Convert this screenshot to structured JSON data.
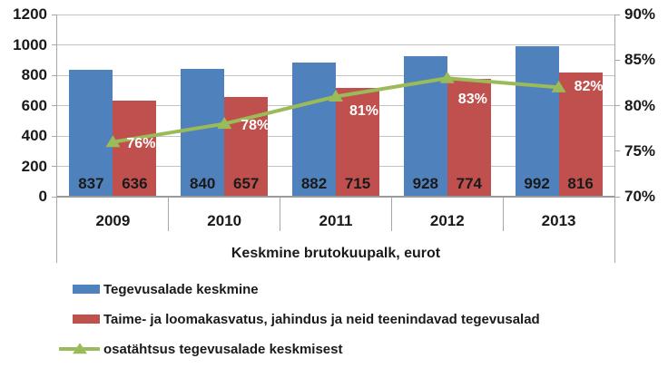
{
  "chart_data": {
    "type": "bar",
    "subtype": "grouped-bars-with-line-overlay",
    "title": "",
    "xlabel": "Keskmine brutokuupalk, eurot",
    "ylabel": "",
    "categories": [
      "2009",
      "2010",
      "2011",
      "2012",
      "2013"
    ],
    "series": [
      {
        "name": "Tegevusalade keskmine",
        "type": "bar",
        "axis": "left",
        "color": "#4F81BD",
        "values": [
          837,
          840,
          882,
          928,
          992
        ],
        "value_labels": [
          "837",
          "840",
          "882",
          "928",
          "992"
        ]
      },
      {
        "name": "Taime- ja loomakasvatus, jahindus ja neid teenindavad tegevusalad",
        "type": "bar",
        "axis": "left",
        "color": "#C0504D",
        "values": [
          636,
          657,
          715,
          774,
          816
        ],
        "value_labels": [
          "636",
          "657",
          "715",
          "774",
          "816"
        ]
      },
      {
        "name": "osatähtsus tegevusalade keskmisest",
        "type": "line",
        "axis": "right",
        "color": "#9BBB59",
        "marker": "triangle-up",
        "values": [
          76,
          78,
          81,
          83,
          82
        ],
        "point_labels": [
          "76%",
          "78%",
          "81%",
          "83%",
          "82%"
        ],
        "point_label_color": "#ffffff"
      }
    ],
    "left_axis": {
      "min": 0,
      "max": 1200,
      "step": 200,
      "tick_labels": [
        "1200",
        "1000",
        "800",
        "600",
        "400",
        "200",
        "0"
      ]
    },
    "right_axis": {
      "min": 70,
      "max": 90,
      "step": 5,
      "tick_labels": [
        "90%",
        "85%",
        "80%",
        "75%",
        "70%"
      ]
    },
    "grid": true,
    "gridline_color": "#c3c3c3",
    "axis_line_color": "#a6a6a6",
    "legend_position": "bottom-left"
  },
  "legend": {
    "items": [
      {
        "label": "Tegevusalade keskmine",
        "swatch": "bar",
        "color": "#4F81BD"
      },
      {
        "label": "Taime- ja loomakasvatus, jahindus ja neid teenindavad tegevusalad",
        "swatch": "bar",
        "color": "#C0504D"
      },
      {
        "label": "osatähtsus tegevusalade keskmisest",
        "swatch": "line-triangle",
        "color": "#9BBB59"
      }
    ]
  }
}
